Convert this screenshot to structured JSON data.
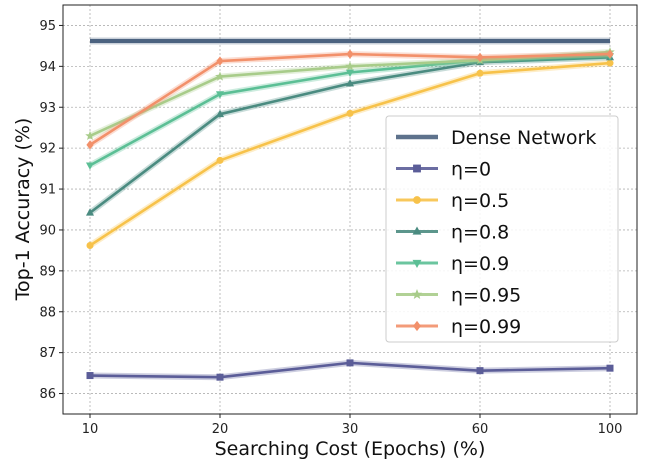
{
  "chart_data": {
    "type": "line",
    "xlabel": "Searching Cost (Epochs) (%)",
    "ylabel": "Top-1 Accuracy (%)",
    "categories": [
      "10",
      "20",
      "30",
      "60",
      "100"
    ],
    "ylim": [
      85.5,
      95.5
    ],
    "yticks": [
      "86",
      "87",
      "88",
      "89",
      "90",
      "91",
      "92",
      "93",
      "94",
      "95"
    ],
    "grid": true,
    "legend_position": "lower-right",
    "series": [
      {
        "name": "Dense Network",
        "values": [
          94.62,
          94.62,
          94.62,
          94.62,
          94.62
        ],
        "color": "#4c6380",
        "marker": "none"
      },
      {
        "name": "η=0",
        "values": [
          86.44,
          86.4,
          86.75,
          86.56,
          86.62
        ],
        "color": "#5b5d98",
        "marker": "square"
      },
      {
        "name": "η=0.5",
        "values": [
          89.62,
          91.7,
          92.85,
          93.83,
          94.08
        ],
        "color": "#f7c24a",
        "marker": "circle"
      },
      {
        "name": "η=0.8",
        "values": [
          90.42,
          92.83,
          93.58,
          94.1,
          94.22
        ],
        "color": "#4a8b80",
        "marker": "triangle-up"
      },
      {
        "name": "η=0.9",
        "values": [
          91.58,
          93.32,
          93.85,
          94.15,
          94.25
        ],
        "color": "#5bbf95",
        "marker": "triangle-down"
      },
      {
        "name": "η=0.95",
        "values": [
          92.3,
          93.75,
          94.0,
          94.15,
          94.35
        ],
        "color": "#a8cc8a",
        "marker": "star"
      },
      {
        "name": "η=0.99",
        "values": [
          92.08,
          94.13,
          94.3,
          94.22,
          94.3
        ],
        "color": "#f2906a",
        "marker": "diamond"
      }
    ]
  }
}
